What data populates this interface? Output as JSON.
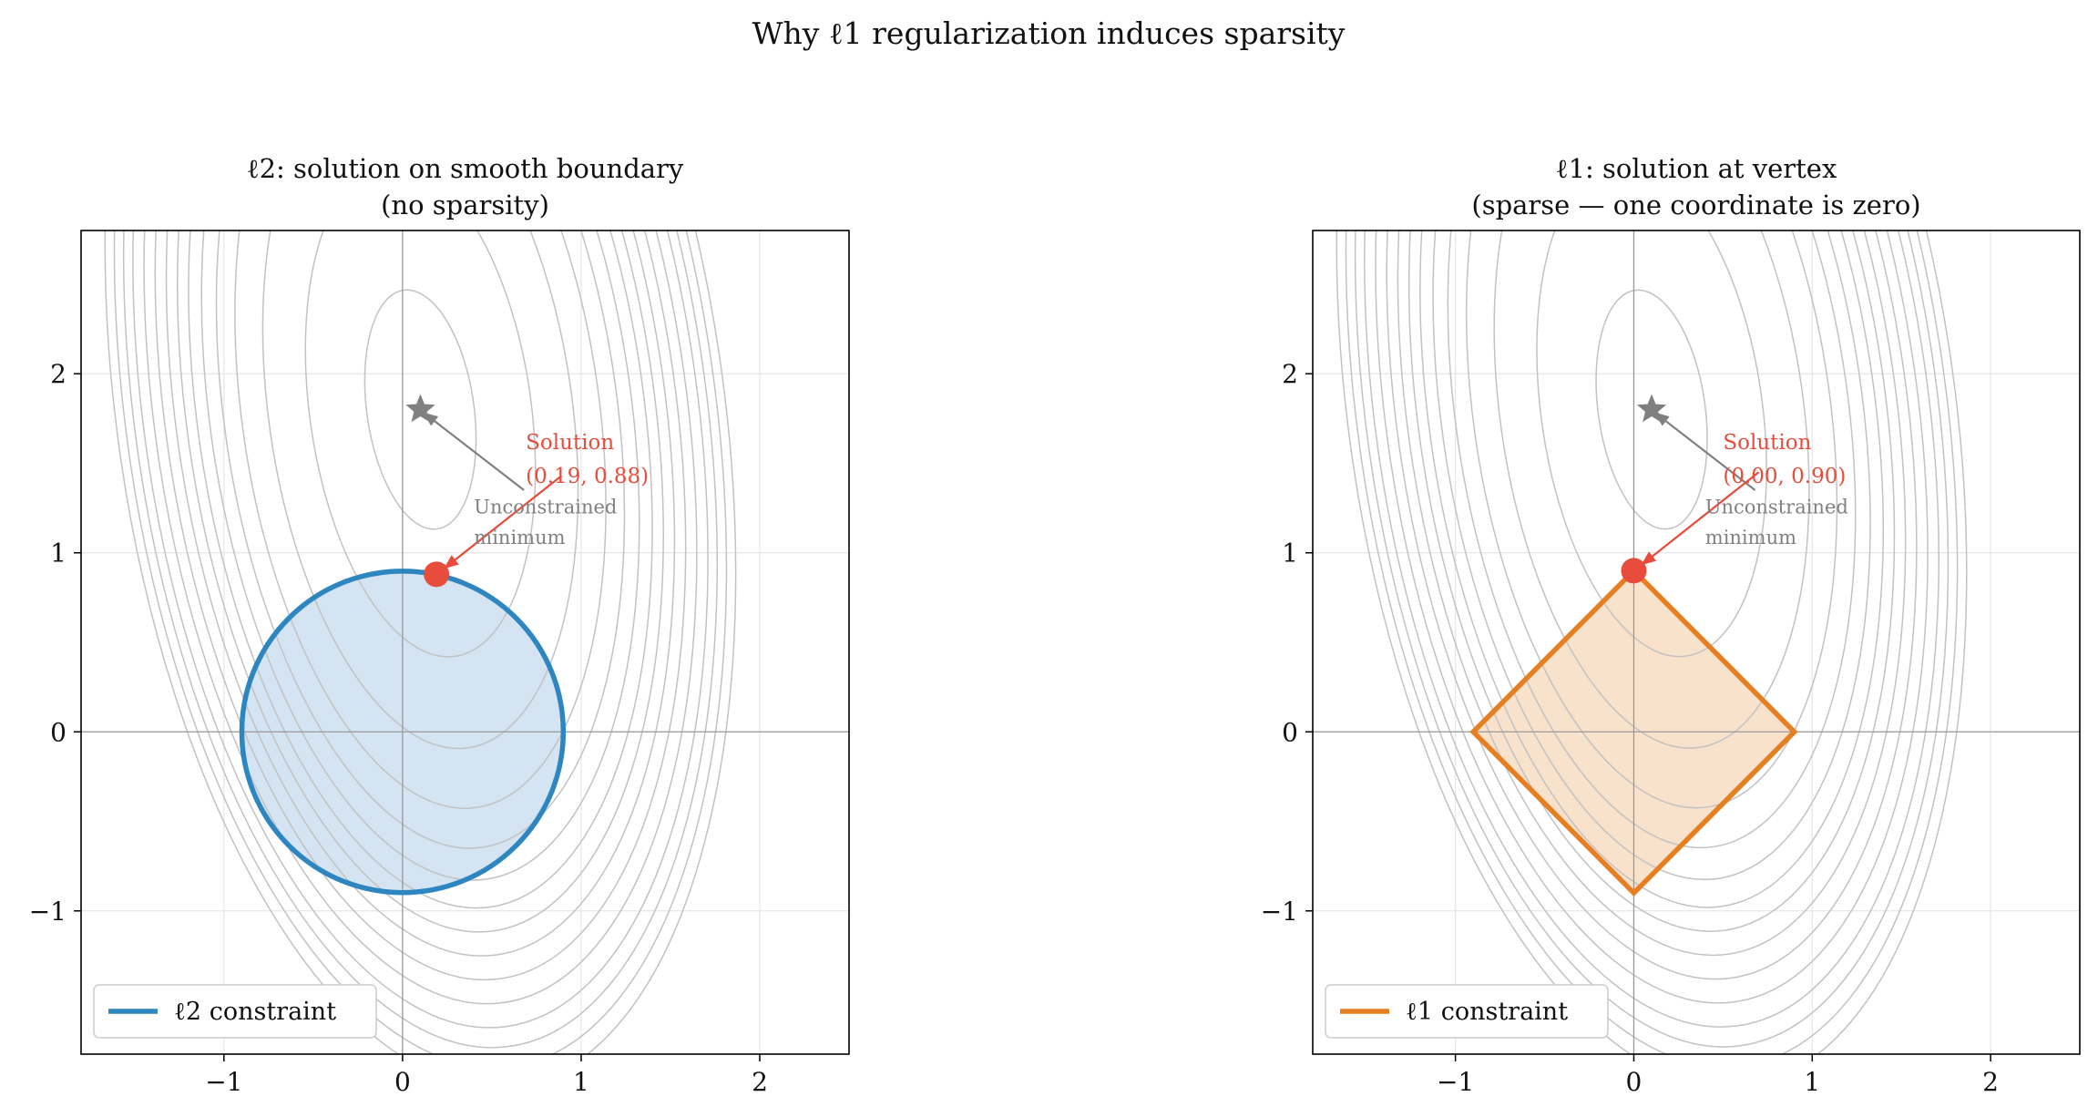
{
  "figure": {
    "suptitle": "Why ℓ1 regularization induces sparsity"
  },
  "colors": {
    "contour": "#c2c2c2",
    "grid": "#e6e6e6",
    "axisline": "#999999",
    "l2": "#2e86c1",
    "l2_fill": "#d4e4f2",
    "l1": "#e67e22",
    "l1_fill": "#f9e2cc",
    "solution": "#e74c3c",
    "star": "#808080"
  },
  "chart_data": [
    {
      "type": "contour",
      "id": "l2",
      "title_line1": "ℓ2: solution on smooth boundary",
      "title_line2": "(no sparsity)",
      "xlim": [
        -1.8,
        2.5
      ],
      "ylim": [
        -1.8,
        2.8
      ],
      "xticks": [
        -1,
        0,
        1,
        2
      ],
      "yticks": [
        -1,
        0,
        1,
        2
      ],
      "xtick_labels": [
        "−1",
        "0",
        "1",
        "2"
      ],
      "ytick_labels": [
        "−1",
        "0",
        "1",
        "2"
      ],
      "grid": true,
      "unconstrained_minimum": {
        "x": 0.1,
        "y": 1.8
      },
      "constraint": {
        "shape": "circle",
        "radius": 0.9
      },
      "solution": {
        "x": 0.19,
        "y": 0.88
      },
      "annotations": {
        "solution_label_line1": "Solution",
        "solution_label_line2": "(0.19, 0.88)",
        "min_label_line1": "Unconstrained",
        "min_label_line2": "minimum"
      },
      "legend": {
        "label": "ℓ2 constraint",
        "position": "lower-left"
      }
    },
    {
      "type": "contour",
      "id": "l1",
      "title_line1": "ℓ1: solution at vertex",
      "title_line2": "(sparse — one coordinate is zero)",
      "xlim": [
        -1.8,
        2.5
      ],
      "ylim": [
        -1.8,
        2.8
      ],
      "xticks": [
        -1,
        0,
        1,
        2
      ],
      "yticks": [
        -1,
        0,
        1,
        2
      ],
      "xtick_labels": [
        "−1",
        "0",
        "1",
        "2"
      ],
      "ytick_labels": [
        "−1",
        "0",
        "1",
        "2"
      ],
      "grid": true,
      "unconstrained_minimum": {
        "x": 0.1,
        "y": 1.8
      },
      "constraint": {
        "shape": "diamond",
        "radius": 0.9
      },
      "solution": {
        "x": 0.0,
        "y": 0.9
      },
      "annotations": {
        "solution_label_line1": "Solution",
        "solution_label_line2": "(0.00, 0.90)",
        "min_label_line1": "Unconstrained",
        "min_label_line2": "minimum"
      },
      "legend": {
        "label": "ℓ1 constraint",
        "position": "lower-left"
      }
    }
  ]
}
